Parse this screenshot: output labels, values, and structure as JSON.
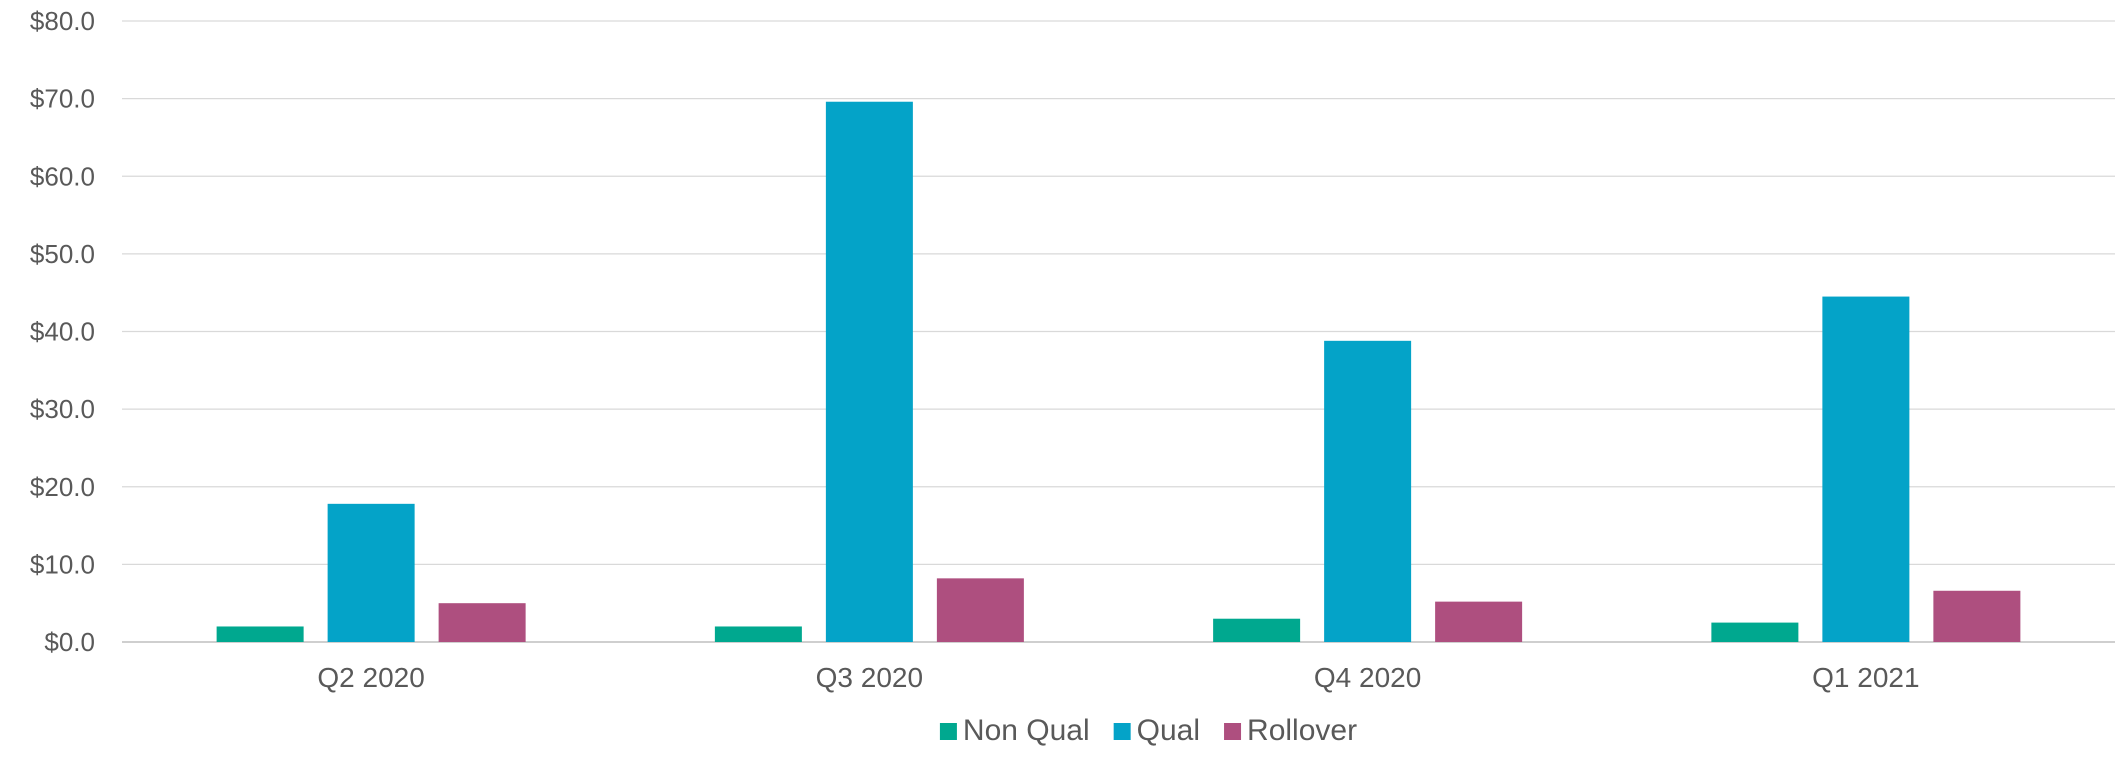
{
  "chart_data": {
    "type": "bar",
    "title": "",
    "xlabel": "",
    "ylabel": "",
    "categories": [
      "Q2 2020",
      "Q3 2020",
      "Q4 2020",
      "Q1 2021"
    ],
    "series": [
      {
        "name": "Non Qual",
        "color": "#00a88f",
        "values": [
          2.0,
          2.0,
          3.0,
          2.5
        ]
      },
      {
        "name": "Qual",
        "color": "#04a3c8",
        "values": [
          17.8,
          69.6,
          38.8,
          44.5
        ]
      },
      {
        "name": "Rollover",
        "color": "#ae4f7f",
        "values": [
          5.0,
          8.2,
          5.2,
          6.6
        ]
      }
    ],
    "ylim": [
      0,
      80
    ],
    "yticks": [
      0,
      10,
      20,
      30,
      40,
      50,
      60,
      70,
      80
    ],
    "ytick_labels": [
      "$0.0",
      "$10.0",
      "$20.0",
      "$30.0",
      "$40.0",
      "$50.0",
      "$60.0",
      "$70.0",
      "$80.0"
    ],
    "grid": true,
    "legend_position": "bottom-center",
    "gridline_color": "#d9d9d9",
    "axis_color": "#bfbfbf"
  }
}
